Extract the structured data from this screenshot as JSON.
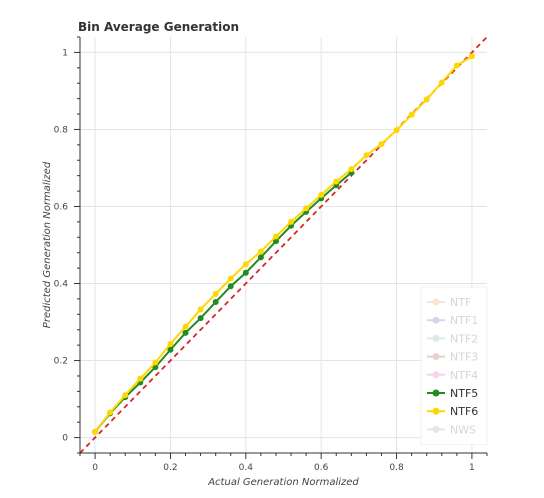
{
  "chart_data": {
    "type": "line",
    "title": "Bin Average Generation",
    "xlabel": "Actual Generation Normalized",
    "ylabel": "Predicted Generation Normalized",
    "xlim": [
      -0.04,
      1.04
    ],
    "ylim": [
      -0.04,
      1.04
    ],
    "grid": true,
    "legend_position": "bottom-right",
    "x_ticks": [
      0,
      0.2,
      0.4,
      0.6,
      0.8,
      1
    ],
    "x_tick_labels": [
      "0",
      "0.2",
      "0.4",
      "0.6",
      "0.8",
      "1"
    ],
    "y_ticks": [
      0,
      0.2,
      0.4,
      0.6,
      0.8,
      1
    ],
    "y_tick_labels": [
      "0",
      "0.2",
      "0.4",
      "0.6",
      "0.8",
      "1"
    ],
    "reference_line": {
      "type": "identity",
      "color": "#d62728",
      "style": "dashed"
    },
    "series": [
      {
        "name": "NTF",
        "color": "#f4a582",
        "muted": true,
        "x": [],
        "y": []
      },
      {
        "name": "NTF1",
        "color": "#9467bd",
        "muted": true,
        "x": [],
        "y": []
      },
      {
        "name": "NTF2",
        "color": "#8ab5c2",
        "muted": true,
        "x": [],
        "y": []
      },
      {
        "name": "NTF3",
        "color": "#b2675e",
        "muted": true,
        "x": [],
        "y": []
      },
      {
        "name": "NTF4",
        "color": "#e377c2",
        "muted": true,
        "x": [],
        "y": []
      },
      {
        "name": "NTF5",
        "color": "#228b22",
        "muted": false,
        "x": [
          0.0,
          0.04,
          0.08,
          0.12,
          0.16,
          0.2,
          0.24,
          0.28,
          0.32,
          0.36,
          0.4,
          0.44,
          0.48,
          0.52,
          0.56,
          0.6,
          0.64,
          0.68
        ],
        "y": [
          0.015,
          0.063,
          0.105,
          0.143,
          0.183,
          0.228,
          0.272,
          0.31,
          0.352,
          0.393,
          0.428,
          0.468,
          0.51,
          0.55,
          0.586,
          0.621,
          0.655,
          0.688
        ]
      },
      {
        "name": "NTF6",
        "color": "#ffd700",
        "muted": false,
        "x": [
          0.0,
          0.04,
          0.08,
          0.12,
          0.16,
          0.2,
          0.24,
          0.28,
          0.32,
          0.36,
          0.4,
          0.44,
          0.48,
          0.52,
          0.56,
          0.6,
          0.64,
          0.68,
          0.72,
          0.76,
          0.8,
          0.84,
          0.88,
          0.92,
          0.96,
          1.0
        ],
        "y": [
          0.015,
          0.065,
          0.11,
          0.153,
          0.195,
          0.243,
          0.288,
          0.333,
          0.373,
          0.413,
          0.45,
          0.483,
          0.522,
          0.56,
          0.595,
          0.63,
          0.665,
          0.697,
          0.733,
          0.762,
          0.798,
          0.838,
          0.878,
          0.922,
          0.966,
          0.99
        ]
      },
      {
        "name": "NWS",
        "color": "#aaaaaa",
        "muted": true,
        "x": [],
        "y": []
      }
    ]
  }
}
